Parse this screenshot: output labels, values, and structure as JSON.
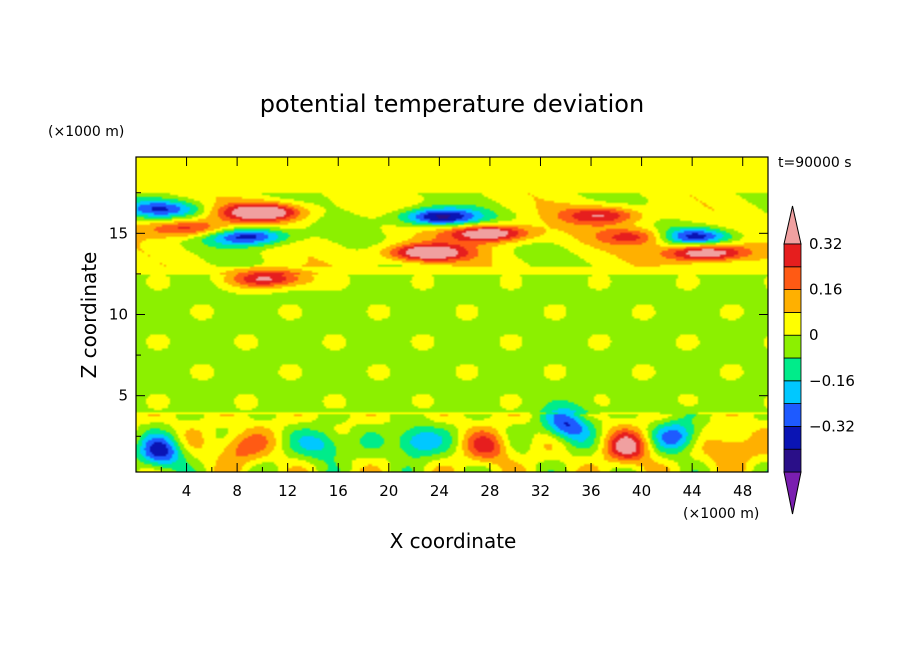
{
  "chart_data": {
    "type": "heatmap",
    "title": "potential temperature deviation",
    "xlabel": "X coordinate",
    "ylabel": "Z coordinate",
    "x_unit": "(×1000 m)",
    "y_unit": "(×1000 m)",
    "time_label": "t=90000 s",
    "xlim": [
      0,
      50
    ],
    "ylim": [
      0.3,
      19.7
    ],
    "x_ticks": [
      4,
      8,
      12,
      16,
      20,
      24,
      28,
      32,
      36,
      40,
      44,
      48
    ],
    "y_ticks": [
      5,
      10,
      15
    ],
    "colorbar": {
      "levels": [
        -0.48,
        -0.4,
        -0.32,
        -0.24,
        -0.16,
        -0.08,
        0,
        0.08,
        0.16,
        0.24,
        0.32,
        0.4
      ],
      "labels": [
        {
          "value": 0.32,
          "text": "0.32"
        },
        {
          "value": 0.16,
          "text": "0.16"
        },
        {
          "value": 0,
          "text": "0"
        },
        {
          "value": -0.16,
          "text": "−0.16"
        },
        {
          "value": -0.32,
          "text": "−0.32"
        }
      ],
      "colors": [
        "#7a1eb0",
        "#2a0f88",
        "#0a14b4",
        "#1e5aff",
        "#00c8ff",
        "#00ec8a",
        "#8cf000",
        "#ffff00",
        "#ffb000",
        "#ff5a14",
        "#e61e1e",
        "#f0a0a0"
      ],
      "extend": "both"
    },
    "features": [
      {
        "x": 0,
        "z": 12.5,
        "value": 0.02
      },
      {
        "x": 25,
        "z": 8,
        "value": -0.02
      },
      {
        "x": 10,
        "z": 16.3,
        "value": 0.45
      },
      {
        "x": 4,
        "z": 15.3,
        "value": 0.3
      },
      {
        "x": 9,
        "z": 14.8,
        "value": -0.4
      },
      {
        "x": 2,
        "z": 16.5,
        "value": -0.3
      },
      {
        "x": 24,
        "z": 16,
        "value": -0.45
      },
      {
        "x": 28,
        "z": 15,
        "value": 0.45
      },
      {
        "x": 23,
        "z": 13.8,
        "value": 0.45
      },
      {
        "x": 37,
        "z": 16.1,
        "value": 0.3
      },
      {
        "x": 40,
        "z": 14.8,
        "value": 0.3
      },
      {
        "x": 45,
        "z": 13.8,
        "value": 0.45
      },
      {
        "x": 44,
        "z": 14.8,
        "value": -0.4
      },
      {
        "x": 10.5,
        "z": 12.2,
        "value": 0.35
      },
      {
        "x": 2,
        "z": 1.5,
        "value": -0.35
      },
      {
        "x": 8,
        "z": 1.8,
        "value": 0.2
      },
      {
        "x": 15,
        "z": 2,
        "value": -0.25
      },
      {
        "x": 22,
        "z": 2.2,
        "value": -0.3
      },
      {
        "x": 28,
        "z": 1.8,
        "value": 0.2
      },
      {
        "x": 34,
        "z": 3.2,
        "value": -0.35
      },
      {
        "x": 39,
        "z": 1.8,
        "value": 0.3
      },
      {
        "x": 43,
        "z": 2.5,
        "value": -0.3
      },
      {
        "x": 47,
        "z": 1.8,
        "value": 0.2
      }
    ]
  }
}
